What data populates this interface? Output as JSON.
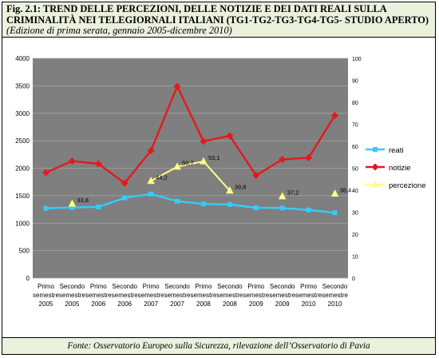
{
  "header": {
    "title": "Fig. 2.1: TREND DELLE PERCEZIONI, DELLE NOTIZIE  E DEI DATI REALI SULLA CRIMINALITÀ NEI TELEGIORNALI ITALIANI (TG1-TG2-TG3-TG4-TG5- STUDIO APERTO)",
    "subtitle": "(Edizione di prima serata, gennaio 2005-dicembre 2010)"
  },
  "footer": {
    "source": "Fonte: Osservatorio Europeo sulla Sicurezza, rilevazione dell’Osservatorio di Pavia"
  },
  "chart_data": {
    "type": "line",
    "categories": [
      [
        "Primo",
        "semestre",
        "2005"
      ],
      [
        "Secondo",
        "semestre",
        "2005"
      ],
      [
        "Primo",
        "semestre",
        "2006"
      ],
      [
        "Secondo",
        "semestre",
        "2006"
      ],
      [
        "Primo",
        "semestre",
        "2007"
      ],
      [
        "Secondo",
        "semestre",
        "2007"
      ],
      [
        "Primo",
        "semestre",
        "2008"
      ],
      [
        "Secondo",
        "semestre",
        "2008"
      ],
      [
        "Primo",
        "semestre",
        "2009"
      ],
      [
        "Secondo",
        "semestre",
        "2009"
      ],
      [
        "Primo",
        "semestre",
        "2010"
      ],
      [
        "Secondo",
        "semestre",
        "2010"
      ]
    ],
    "y_left": {
      "ylim": [
        0,
        4000
      ],
      "ticks": [
        0,
        500,
        1000,
        1500,
        2000,
        2500,
        3000,
        3500,
        4000
      ]
    },
    "y_right": {
      "ylim": [
        0,
        100
      ],
      "ticks": [
        0,
        10,
        20,
        30,
        40,
        50,
        60,
        70,
        80,
        90,
        100
      ]
    },
    "grid": true,
    "legend_position": "right",
    "series": [
      {
        "name": "reati",
        "axis": "left",
        "color": "#33ccff",
        "marker": "square",
        "values": [
          1270,
          1285,
          1295,
          1460,
          1530,
          1400,
          1350,
          1340,
          1280,
          1275,
          1240,
          1190
        ]
      },
      {
        "name": "notizie",
        "axis": "left",
        "color": "#e31a1c",
        "marker": "diamond",
        "values": [
          1920,
          2130,
          2080,
          1730,
          2320,
          3490,
          2490,
          2590,
          1870,
          2160,
          2190,
          2960
        ]
      },
      {
        "name": "percezione",
        "axis": "right",
        "color": "#ffff88",
        "marker": "triangle",
        "values": [
          null,
          33.8,
          null,
          null,
          44.2,
          50.7,
          53.1,
          39.8,
          null,
          37.2,
          null,
          38.4
        ],
        "labels": [
          "",
          "33,8",
          "",
          "",
          "44,2",
          "50,7",
          "53,1",
          "39,8",
          "",
          "37,2",
          "",
          "38,4"
        ]
      }
    ]
  }
}
